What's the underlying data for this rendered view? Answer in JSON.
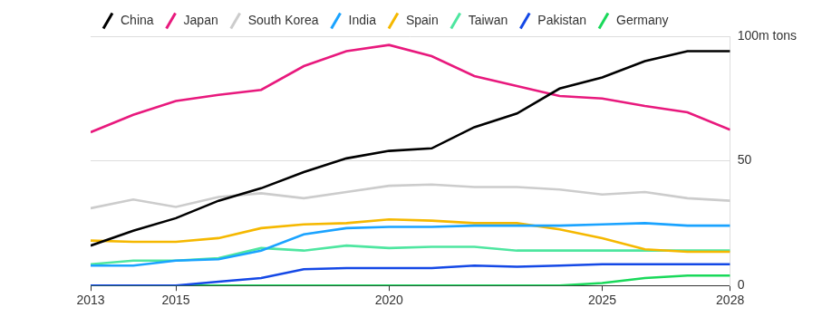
{
  "chart_data": {
    "type": "line",
    "x": [
      2013,
      2014,
      2015,
      2016,
      2017,
      2018,
      2019,
      2020,
      2021,
      2022,
      2023,
      2024,
      2025,
      2026,
      2027,
      2028
    ],
    "xlim": [
      2013,
      2028
    ],
    "xticks": [
      2013,
      2015,
      2020,
      2025,
      2028
    ],
    "ylim": [
      0,
      100
    ],
    "yticks": [
      0,
      50,
      {
        "value": 100,
        "label": "100m tons"
      }
    ],
    "grid": true,
    "legend": "top-left",
    "series": [
      {
        "name": "China",
        "color": "#000000",
        "values": [
          16,
          22,
          27,
          34,
          39,
          45.5,
          51,
          54,
          55,
          63.5,
          69,
          79,
          83.5,
          90,
          94,
          94
        ]
      },
      {
        "name": "Japan",
        "color": "#e8197d",
        "values": [
          61.5,
          68.5,
          74,
          76.5,
          78.5,
          88,
          94,
          96.5,
          92,
          84,
          80,
          76,
          75,
          72,
          69.5,
          62.5
        ]
      },
      {
        "name": "South Korea",
        "color": "#cccccc",
        "values": [
          31,
          34.5,
          31.5,
          35.5,
          37,
          35,
          37.5,
          40,
          40.5,
          39.5,
          39.5,
          38.5,
          36.5,
          37.5,
          35,
          34
        ]
      },
      {
        "name": "India",
        "color": "#1aa3ff",
        "values": [
          8,
          8,
          10,
          10.5,
          14,
          20.5,
          23,
          23.5,
          23.5,
          24,
          24,
          24,
          24.5,
          25,
          24,
          24
        ]
      },
      {
        "name": "Spain",
        "color": "#f5b800",
        "values": [
          18,
          17.5,
          17.5,
          19,
          23,
          24.5,
          25,
          26.5,
          26,
          25,
          25,
          22.5,
          19,
          14.5,
          13.5,
          13.5
        ]
      },
      {
        "name": "Taiwan",
        "color": "#4ee6a0",
        "values": [
          8.5,
          10,
          10,
          11,
          15,
          14,
          16,
          15,
          15.5,
          15.5,
          14,
          14,
          14,
          14,
          14,
          14
        ]
      },
      {
        "name": "Pakistan",
        "color": "#1448e6",
        "values": [
          0,
          0,
          0,
          1.5,
          3,
          6.5,
          7,
          7,
          7,
          8,
          7.5,
          8,
          8.5,
          8.5,
          8.5,
          8.5
        ]
      },
      {
        "name": "Germany",
        "color": "#19d95a",
        "values": [
          0,
          0,
          0,
          0,
          0,
          0,
          0,
          0,
          0,
          0,
          0,
          0,
          1,
          3,
          4,
          4
        ]
      }
    ]
  }
}
